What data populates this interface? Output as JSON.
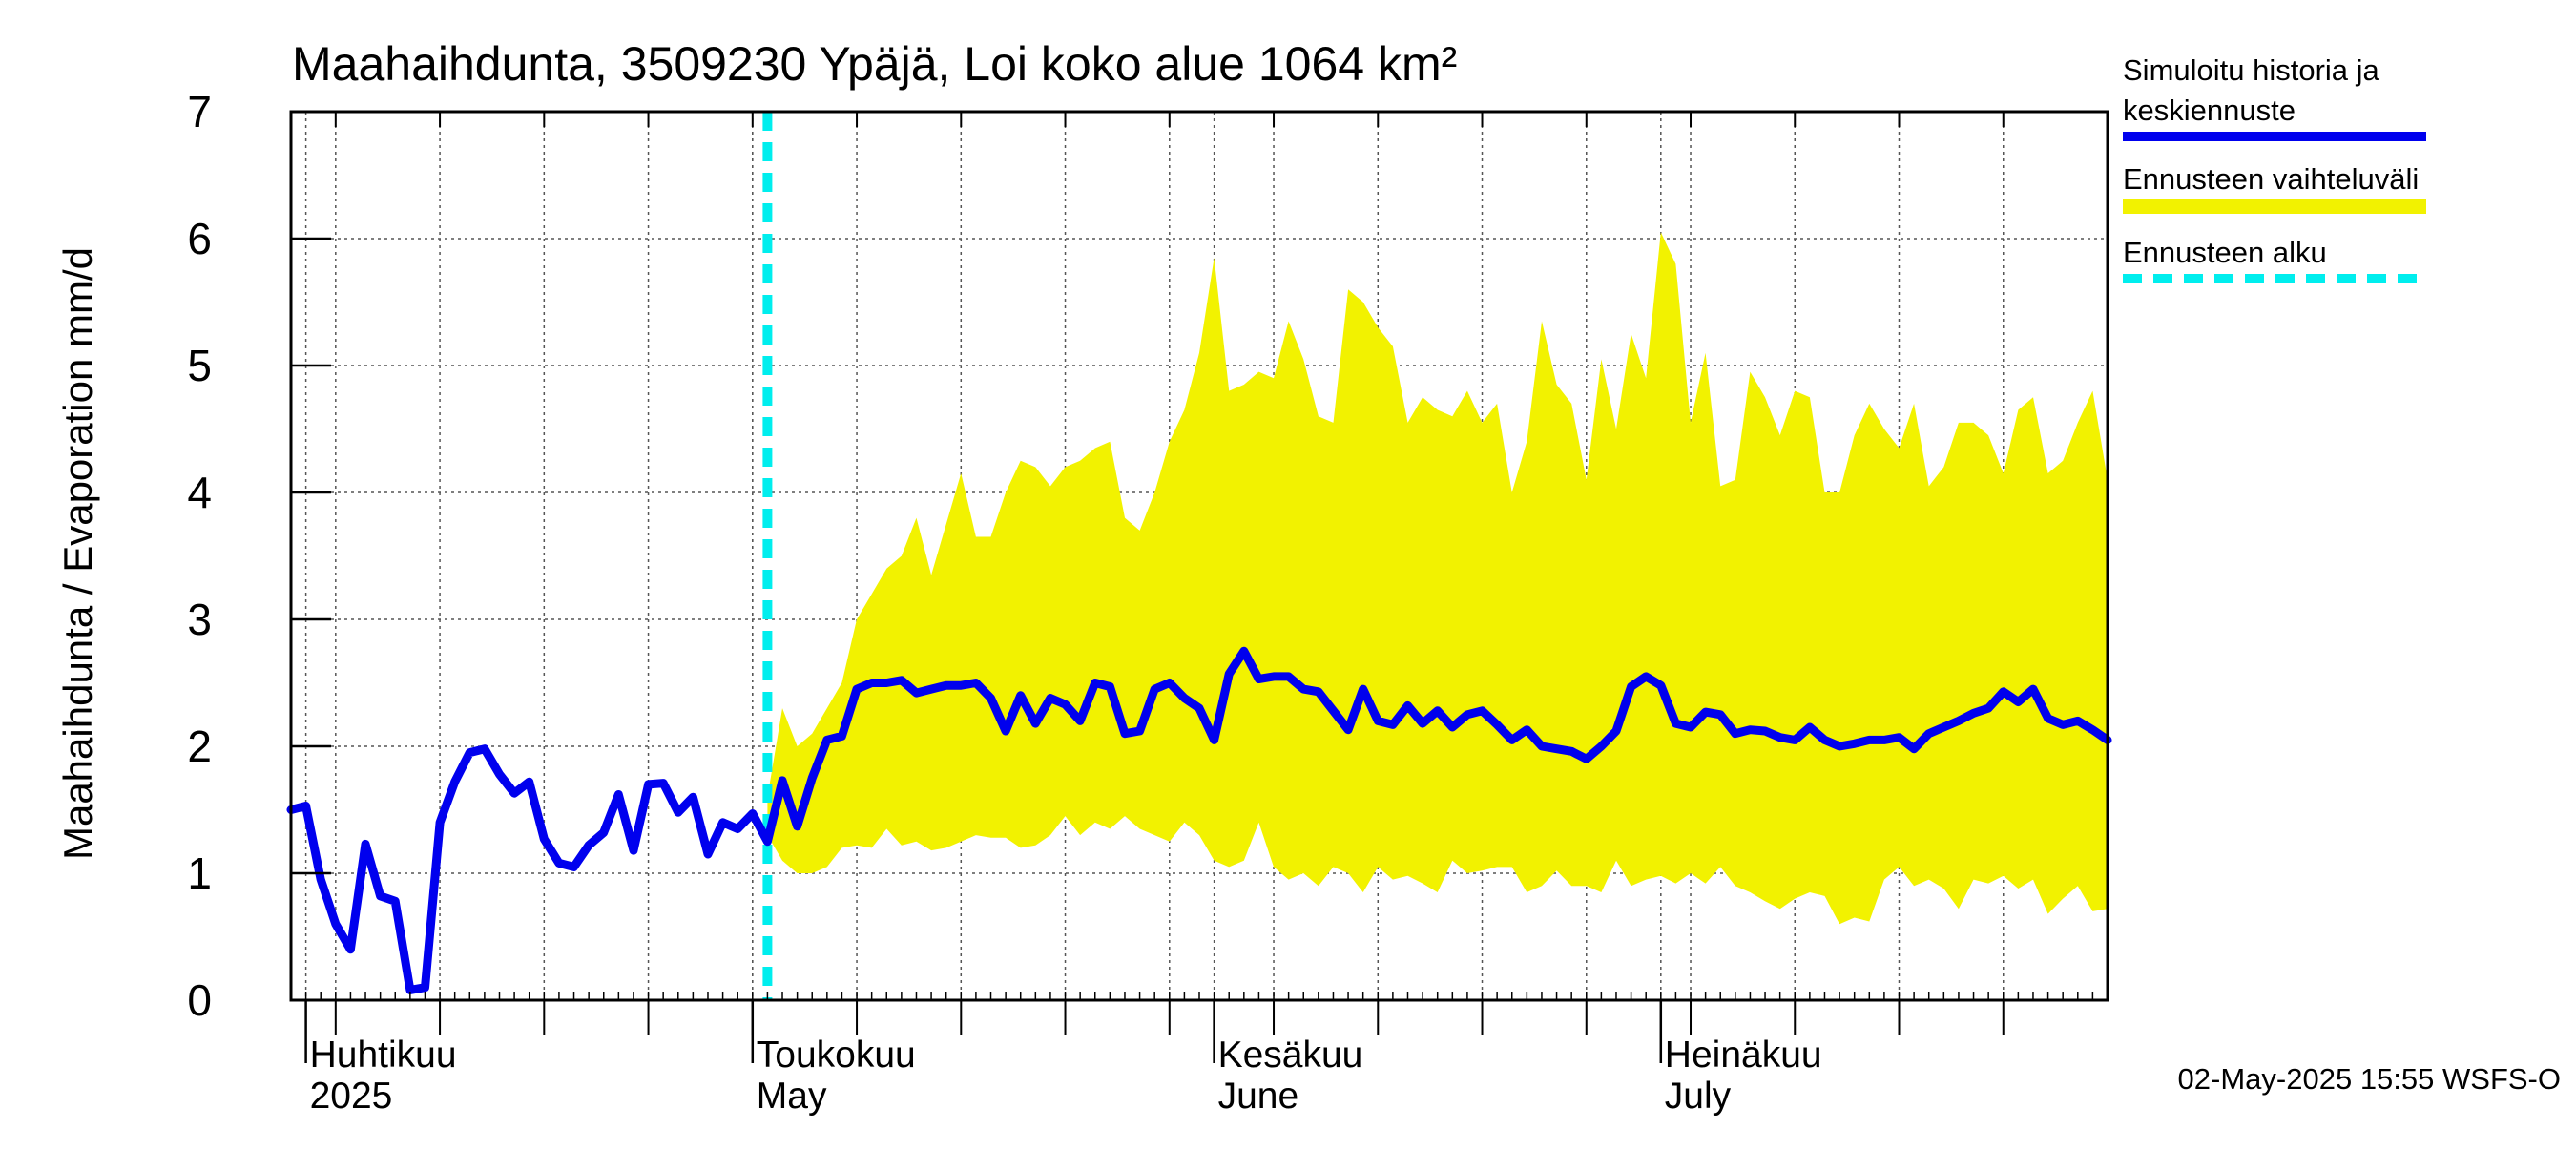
{
  "chart_data": {
    "type": "line",
    "title": "Maahaihdunta, 3509230 Ypäjä, Loi koko alue 1064 km²",
    "ylabel": "Maahaihdunta / Evaporation   mm/d",
    "ylim": [
      0,
      7
    ],
    "yticks": [
      "0",
      "1",
      "2",
      "3",
      "4",
      "5",
      "6",
      "7"
    ],
    "xlim": [
      "2025-03-31",
      "2025-07-31"
    ],
    "grid": true,
    "legend_position": "right",
    "month_labels": [
      {
        "date": "2025-04-01",
        "fi": "Huhtikuu",
        "en": "2025"
      },
      {
        "date": "2025-05-01",
        "fi": "Toukokuu",
        "en": "May"
      },
      {
        "date": "2025-06-01",
        "fi": "Kesäkuu",
        "en": "June"
      },
      {
        "date": "2025-07-01",
        "fi": "Heinäkuu",
        "en": "July"
      }
    ],
    "forecast_start": "2025-05-02",
    "colors": {
      "history": "#0000ee",
      "range": "#f2f200",
      "forecast_start": "#00eeee"
    },
    "series": [
      {
        "name": "Simuloitu historia ja keskiennuste",
        "x": [
          "2025-03-31",
          "2025-04-01",
          "2025-04-02",
          "2025-04-03",
          "2025-04-04",
          "2025-04-05",
          "2025-04-06",
          "2025-04-07",
          "2025-04-08",
          "2025-04-09",
          "2025-04-10",
          "2025-04-11",
          "2025-04-12",
          "2025-04-13",
          "2025-04-14",
          "2025-04-15",
          "2025-04-16",
          "2025-04-17",
          "2025-04-18",
          "2025-04-19",
          "2025-04-20",
          "2025-04-21",
          "2025-04-22",
          "2025-04-23",
          "2025-04-24",
          "2025-04-25",
          "2025-04-26",
          "2025-04-27",
          "2025-04-28",
          "2025-04-29",
          "2025-04-30",
          "2025-05-01",
          "2025-05-02",
          "2025-05-03",
          "2025-05-04",
          "2025-05-05",
          "2025-05-06",
          "2025-05-07",
          "2025-05-08",
          "2025-05-09",
          "2025-05-10",
          "2025-05-11",
          "2025-05-12",
          "2025-05-13",
          "2025-05-14",
          "2025-05-15",
          "2025-05-16",
          "2025-05-17",
          "2025-05-18",
          "2025-05-19",
          "2025-05-20",
          "2025-05-21",
          "2025-05-22",
          "2025-05-23",
          "2025-05-24",
          "2025-05-25",
          "2025-05-26",
          "2025-05-27",
          "2025-05-28",
          "2025-05-29",
          "2025-05-30",
          "2025-05-31",
          "2025-06-01",
          "2025-06-02",
          "2025-06-03",
          "2025-06-04",
          "2025-06-05",
          "2025-06-06",
          "2025-06-07",
          "2025-06-08",
          "2025-06-09",
          "2025-06-10",
          "2025-06-11",
          "2025-06-12",
          "2025-06-13",
          "2025-06-14",
          "2025-06-15",
          "2025-06-16",
          "2025-06-17",
          "2025-06-18",
          "2025-06-19",
          "2025-06-20",
          "2025-06-21",
          "2025-06-22",
          "2025-06-23",
          "2025-06-24",
          "2025-06-25",
          "2025-06-26",
          "2025-06-27",
          "2025-06-28",
          "2025-06-29",
          "2025-06-30",
          "2025-07-01",
          "2025-07-02",
          "2025-07-03",
          "2025-07-04",
          "2025-07-05",
          "2025-07-06",
          "2025-07-07",
          "2025-07-08",
          "2025-07-09",
          "2025-07-10",
          "2025-07-11",
          "2025-07-12",
          "2025-07-13",
          "2025-07-14",
          "2025-07-15",
          "2025-07-16",
          "2025-07-17",
          "2025-07-18",
          "2025-07-19",
          "2025-07-20",
          "2025-07-21",
          "2025-07-22",
          "2025-07-23",
          "2025-07-24",
          "2025-07-25",
          "2025-07-26",
          "2025-07-27",
          "2025-07-28",
          "2025-07-29",
          "2025-07-30",
          "2025-07-31"
        ],
        "y": [
          1.5,
          1.53,
          0.95,
          0.6,
          0.4,
          1.23,
          0.82,
          0.78,
          0.08,
          0.1,
          1.4,
          1.72,
          1.95,
          1.98,
          1.78,
          1.63,
          1.72,
          1.27,
          1.08,
          1.05,
          1.22,
          1.32,
          1.62,
          1.18,
          1.7,
          1.71,
          1.48,
          1.6,
          1.15,
          1.4,
          1.35,
          1.47,
          1.25,
          1.73,
          1.37,
          1.75,
          2.05,
          2.08,
          2.45,
          2.5,
          2.5,
          2.52,
          2.42,
          2.45,
          2.48,
          2.48,
          2.5,
          2.38,
          2.12,
          2.4,
          2.18,
          2.38,
          2.33,
          2.2,
          2.5,
          2.47,
          2.1,
          2.12,
          2.45,
          2.5,
          2.38,
          2.3,
          2.05,
          2.57,
          2.75,
          2.53,
          2.55,
          2.55,
          2.45,
          2.43,
          2.28,
          2.13,
          2.45,
          2.2,
          2.17,
          2.32,
          2.18,
          2.28,
          2.15,
          2.25,
          2.28,
          2.17,
          2.05,
          2.13,
          2.0,
          1.98,
          1.96,
          1.9,
          2.0,
          2.12,
          2.47,
          2.55,
          2.48,
          2.18,
          2.15,
          2.27,
          2.25,
          2.1,
          2.13,
          2.12,
          2.07,
          2.05,
          2.15,
          2.05,
          2.0,
          2.02,
          2.05,
          2.05,
          2.07,
          1.98,
          2.1,
          2.15,
          2.2,
          2.26,
          2.3,
          2.43,
          2.35,
          2.45,
          2.22,
          2.17,
          2.2,
          2.13,
          2.05
        ]
      },
      {
        "name": "Ennusteen vaihteluväli",
        "x": [
          "2025-05-02",
          "2025-05-03",
          "2025-05-04",
          "2025-05-05",
          "2025-05-06",
          "2025-05-07",
          "2025-05-08",
          "2025-05-09",
          "2025-05-10",
          "2025-05-11",
          "2025-05-12",
          "2025-05-13",
          "2025-05-14",
          "2025-05-15",
          "2025-05-16",
          "2025-05-17",
          "2025-05-18",
          "2025-05-19",
          "2025-05-20",
          "2025-05-21",
          "2025-05-22",
          "2025-05-23",
          "2025-05-24",
          "2025-05-25",
          "2025-05-26",
          "2025-05-27",
          "2025-05-28",
          "2025-05-29",
          "2025-05-30",
          "2025-05-31",
          "2025-06-01",
          "2025-06-02",
          "2025-06-03",
          "2025-06-04",
          "2025-06-05",
          "2025-06-06",
          "2025-06-07",
          "2025-06-08",
          "2025-06-09",
          "2025-06-10",
          "2025-06-11",
          "2025-06-12",
          "2025-06-13",
          "2025-06-14",
          "2025-06-15",
          "2025-06-16",
          "2025-06-17",
          "2025-06-18",
          "2025-06-19",
          "2025-06-20",
          "2025-06-21",
          "2025-06-22",
          "2025-06-23",
          "2025-06-24",
          "2025-06-25",
          "2025-06-26",
          "2025-06-27",
          "2025-06-28",
          "2025-06-29",
          "2025-06-30",
          "2025-07-01",
          "2025-07-02",
          "2025-07-03",
          "2025-07-04",
          "2025-07-05",
          "2025-07-06",
          "2025-07-07",
          "2025-07-08",
          "2025-07-09",
          "2025-07-10",
          "2025-07-11",
          "2025-07-12",
          "2025-07-13",
          "2025-07-14",
          "2025-07-15",
          "2025-07-16",
          "2025-07-17",
          "2025-07-18",
          "2025-07-19",
          "2025-07-20",
          "2025-07-21",
          "2025-07-22",
          "2025-07-23",
          "2025-07-24",
          "2025-07-25",
          "2025-07-26",
          "2025-07-27",
          "2025-07-28",
          "2025-07-29",
          "2025-07-30",
          "2025-07-31"
        ],
        "low": [
          1.3,
          1.1,
          1.0,
          1.0,
          1.05,
          1.2,
          1.22,
          1.2,
          1.35,
          1.22,
          1.25,
          1.18,
          1.2,
          1.25,
          1.3,
          1.28,
          1.28,
          1.2,
          1.22,
          1.3,
          1.45,
          1.3,
          1.4,
          1.35,
          1.45,
          1.35,
          1.3,
          1.25,
          1.4,
          1.3,
          1.1,
          1.05,
          1.1,
          1.4,
          1.05,
          0.95,
          1.0,
          0.9,
          1.05,
          1.0,
          0.85,
          1.05,
          0.95,
          0.98,
          0.92,
          0.85,
          1.1,
          1.0,
          1.02,
          1.05,
          1.05,
          0.85,
          0.9,
          1.02,
          0.9,
          0.9,
          0.85,
          1.1,
          0.9,
          0.95,
          0.98,
          0.92,
          1.0,
          0.92,
          1.05,
          0.9,
          0.85,
          0.78,
          0.72,
          0.8,
          0.85,
          0.82,
          0.6,
          0.65,
          0.62,
          0.95,
          1.05,
          0.9,
          0.95,
          0.88,
          0.72,
          0.95,
          0.92,
          0.98,
          0.88,
          0.95,
          0.68,
          0.8,
          0.9,
          0.7,
          0.72
        ],
        "high": [
          1.6,
          2.3,
          2.0,
          2.1,
          2.3,
          2.5,
          3.0,
          3.2,
          3.4,
          3.5,
          3.8,
          3.35,
          3.75,
          4.15,
          3.65,
          3.65,
          4.0,
          4.25,
          4.2,
          4.05,
          4.2,
          4.25,
          4.35,
          4.4,
          3.8,
          3.7,
          4.0,
          4.4,
          4.65,
          5.1,
          5.85,
          4.8,
          4.85,
          4.95,
          4.9,
          5.35,
          5.05,
          4.6,
          4.55,
          5.6,
          5.5,
          5.3,
          5.15,
          4.55,
          4.75,
          4.65,
          4.6,
          4.8,
          4.55,
          4.7,
          4.0,
          4.4,
          5.35,
          4.85,
          4.7,
          4.1,
          5.05,
          4.5,
          5.25,
          4.9,
          6.05,
          5.8,
          4.55,
          5.1,
          4.05,
          4.1,
          4.95,
          4.75,
          4.45,
          4.8,
          4.75,
          4.0,
          4.0,
          4.45,
          4.7,
          4.5,
          4.35,
          4.7,
          4.05,
          4.2,
          4.55,
          4.55,
          4.45,
          4.15,
          4.65,
          4.75,
          4.15,
          4.25,
          4.55,
          4.8,
          4.1
        ]
      }
    ]
  },
  "legend": {
    "history_line1": "Simuloitu historia ja",
    "history_line2": "keskiennuste",
    "range": "Ennusteen vaihteluväli",
    "forecast_start": "Ennusteen alku"
  },
  "timestamp": "02-May-2025 15:55 WSFS-O"
}
